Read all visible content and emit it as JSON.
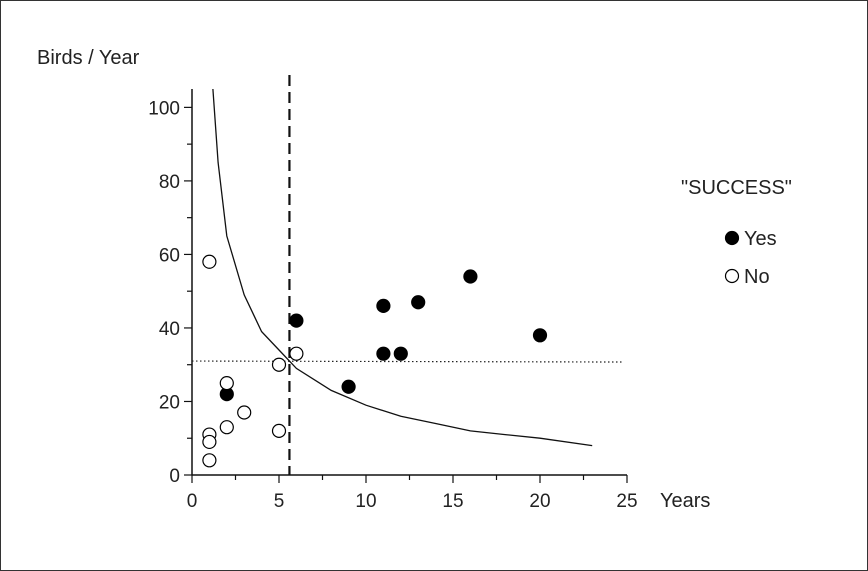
{
  "chart_data": {
    "type": "scatter",
    "title": "",
    "xlabel": "Years",
    "ylabel": "Birds / Year",
    "xlim": [
      0,
      25
    ],
    "ylim": [
      0,
      105
    ],
    "x_ticks": [
      0,
      5,
      10,
      15,
      20,
      25
    ],
    "y_ticks": [
      0,
      20,
      40,
      60,
      80,
      100
    ],
    "x_tick_labels": [
      "0",
      "5",
      "10",
      "15",
      "20",
      "25"
    ],
    "y_tick_labels": [
      "0",
      "20",
      "40",
      "60",
      "80",
      "100"
    ],
    "grid": false,
    "legend": {
      "title": "\"SUCCESS\"",
      "placement": "right",
      "entries": [
        "Yes",
        "No"
      ]
    },
    "series": [
      {
        "name": "Yes",
        "marker": "filled-circle",
        "color": "#000000",
        "points": [
          {
            "x": 2,
            "y": 22
          },
          {
            "x": 6,
            "y": 42
          },
          {
            "x": 9,
            "y": 24
          },
          {
            "x": 11,
            "y": 46
          },
          {
            "x": 11,
            "y": 33
          },
          {
            "x": 12,
            "y": 33
          },
          {
            "x": 13,
            "y": 47
          },
          {
            "x": 16,
            "y": 54
          },
          {
            "x": 20,
            "y": 38
          }
        ]
      },
      {
        "name": "No",
        "marker": "open-circle",
        "color": "#000000",
        "points": [
          {
            "x": 1,
            "y": 58
          },
          {
            "x": 1,
            "y": 11
          },
          {
            "x": 1,
            "y": 9
          },
          {
            "x": 1,
            "y": 4
          },
          {
            "x": 2,
            "y": 25
          },
          {
            "x": 2,
            "y": 13
          },
          {
            "x": 3,
            "y": 17
          },
          {
            "x": 5,
            "y": 30
          },
          {
            "x": 5,
            "y": 12
          },
          {
            "x": 6,
            "y": 33
          }
        ]
      }
    ],
    "reference_lines": {
      "vertical_dashed_x": 5.6,
      "horizontal_dotted_y": 31,
      "curve": {
        "style": "solid",
        "points": [
          {
            "x": 1.2,
            "y": 105
          },
          {
            "x": 1.5,
            "y": 85
          },
          {
            "x": 2,
            "y": 65
          },
          {
            "x": 3,
            "y": 49
          },
          {
            "x": 4,
            "y": 39
          },
          {
            "x": 5,
            "y": 34
          },
          {
            "x": 6,
            "y": 29
          },
          {
            "x": 8,
            "y": 23
          },
          {
            "x": 10,
            "y": 19
          },
          {
            "x": 12,
            "y": 16
          },
          {
            "x": 14,
            "y": 14
          },
          {
            "x": 16,
            "y": 12
          },
          {
            "x": 18,
            "y": 11
          },
          {
            "x": 20,
            "y": 10
          },
          {
            "x": 23,
            "y": 8
          }
        ]
      }
    }
  }
}
